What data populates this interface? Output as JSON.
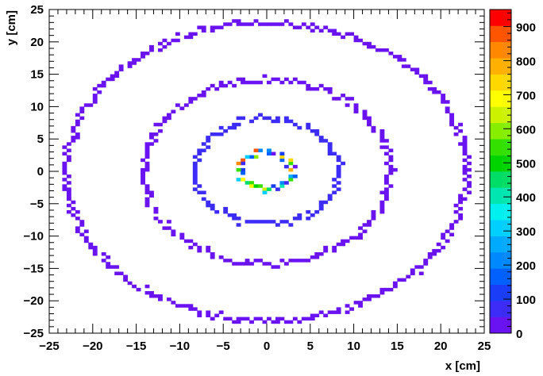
{
  "chart_data": {
    "type": "heatmap",
    "title": "",
    "xlabel": "x [cm]",
    "ylabel": "y [cm]",
    "xlim": [
      -25,
      25
    ],
    "ylim": [
      -25,
      25
    ],
    "x_ticks": [
      -25,
      -20,
      -15,
      -10,
      -5,
      0,
      5,
      10,
      15,
      20,
      25
    ],
    "y_ticks": [
      -25,
      -20,
      -15,
      -10,
      -5,
      0,
      5,
      10,
      15,
      20,
      25
    ],
    "x_tick_labels": [
      "−25",
      "−20",
      "−15",
      "−10",
      "−5",
      "0",
      "5",
      "10",
      "15",
      "20",
      "25"
    ],
    "y_tick_labels": [
      "−25",
      "−20",
      "−15",
      "−10",
      "−5",
      "0",
      "5",
      "10",
      "15",
      "20",
      "25"
    ],
    "colorbar": {
      "range": [
        0,
        950
      ],
      "ticks": [
        0,
        100,
        200,
        300,
        400,
        500,
        600,
        700,
        800,
        900
      ],
      "tick_labels": [
        "0",
        "100",
        "200",
        "300",
        "400",
        "500",
        "600",
        "700",
        "800",
        "900"
      ],
      "palette": [
        "#6a13f2",
        "#3d2cf7",
        "#1a3ef8",
        "#0061ff",
        "#0088ff",
        "#00aaff",
        "#00cfff",
        "#00f0f0",
        "#00e6b0",
        "#00dd66",
        "#00d400",
        "#33e000",
        "#88ee00",
        "#ccf200",
        "#ffff00",
        "#ffd800",
        "#ffb000",
        "#ff8800",
        "#ff5500",
        "#ff0000"
      ]
    },
    "rings": [
      {
        "radius_cm": 2.9,
        "value_range": [
          0,
          950
        ],
        "cells_mm": 5
      },
      {
        "radius_cm": 8.2,
        "value": 60,
        "cells_mm": 5
      },
      {
        "radius_cm": 14.2,
        "value": 15,
        "cells_mm": 5
      },
      {
        "radius_cm": 23.0,
        "value": 10,
        "cells_mm": 5
      }
    ]
  }
}
